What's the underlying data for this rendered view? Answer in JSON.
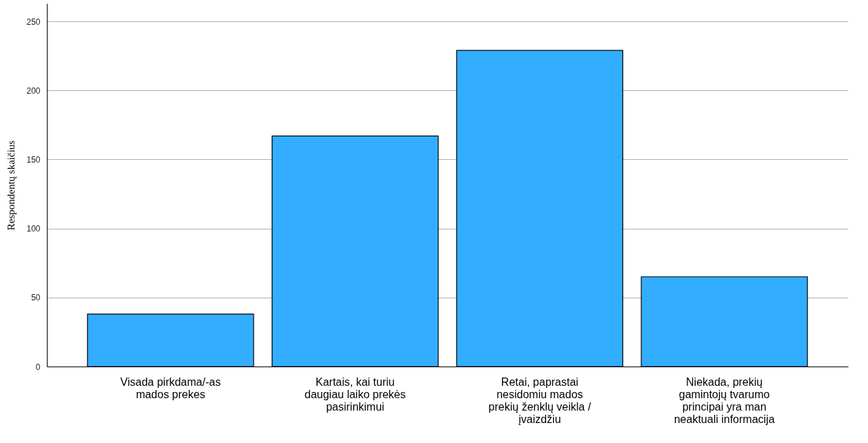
{
  "chart_data": {
    "type": "bar",
    "ylabel": "Respondentų skaičius",
    "categories": [
      "Visada pirkdama/-as mados prekes",
      "Kartais, kai turiu daugiau laiko prekės pasirinkimui",
      "Retai, paprastai nesidomiu mados prekių ženklų veikla / įvaizdžiu",
      "Niekada, prekių gamintojų tvarumo principai yra man neaktuali informacija"
    ],
    "values": [
      38,
      167,
      229,
      65
    ],
    "color": "#33adff",
    "ylim": [
      0,
      263
    ],
    "yticks": [
      0,
      50,
      100,
      150,
      200,
      250
    ],
    "grid": "y"
  }
}
